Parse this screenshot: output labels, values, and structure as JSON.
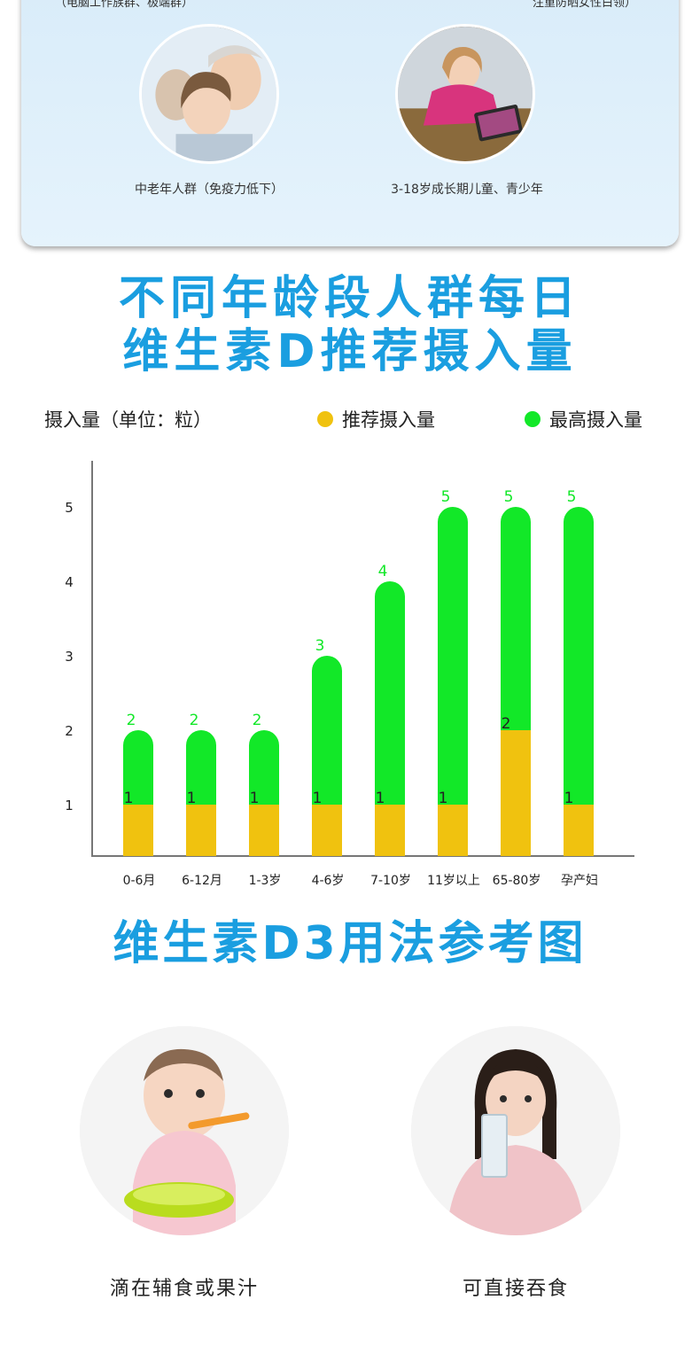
{
  "top_card": {
    "cut_left": "（电脑工作族群、极端群）",
    "cut_right": "注重防晒女性白领）",
    "groups": [
      {
        "caption": "中老年人群（免疫力低下）"
      },
      {
        "caption": "3-18岁成长期儿童、青少年"
      }
    ]
  },
  "section_title": {
    "line1": "不同年龄段人群每日",
    "line2": "维生素D推荐摄入量"
  },
  "legend": {
    "unit": "摄入量（单位：粒）",
    "recommended": "推荐摄入量",
    "maximum": "最高摄入量"
  },
  "colors": {
    "recommended": "#f0c20f",
    "maximum": "#12e828",
    "title": "#1a9ee0",
    "axis": "#777777",
    "max_label": "#12e828"
  },
  "chart_data": {
    "type": "bar",
    "stacking": "overlay",
    "categories": [
      "0-6月",
      "6-12月",
      "1-3岁",
      "4-6岁",
      "7-10岁",
      "11岁以上",
      "65-80岁",
      "孕产妇"
    ],
    "series": [
      {
        "name": "推荐摄入量",
        "values": [
          1,
          1,
          1,
          1,
          1,
          1,
          2,
          1
        ]
      },
      {
        "name": "最高摄入量",
        "values": [
          2,
          2,
          2,
          3,
          4,
          5,
          5,
          5
        ]
      }
    ],
    "y_ticks": [
      1,
      2,
      3,
      4,
      5
    ],
    "ylim": [
      0,
      5.5
    ],
    "ylabel": "摄入量（单位：粒）",
    "legend_position": "top",
    "grid": false
  },
  "usage_title": "维生素D3用法参考图",
  "usage": [
    {
      "label": "滴在辅食或果汁"
    },
    {
      "label": "可直接吞食"
    }
  ]
}
